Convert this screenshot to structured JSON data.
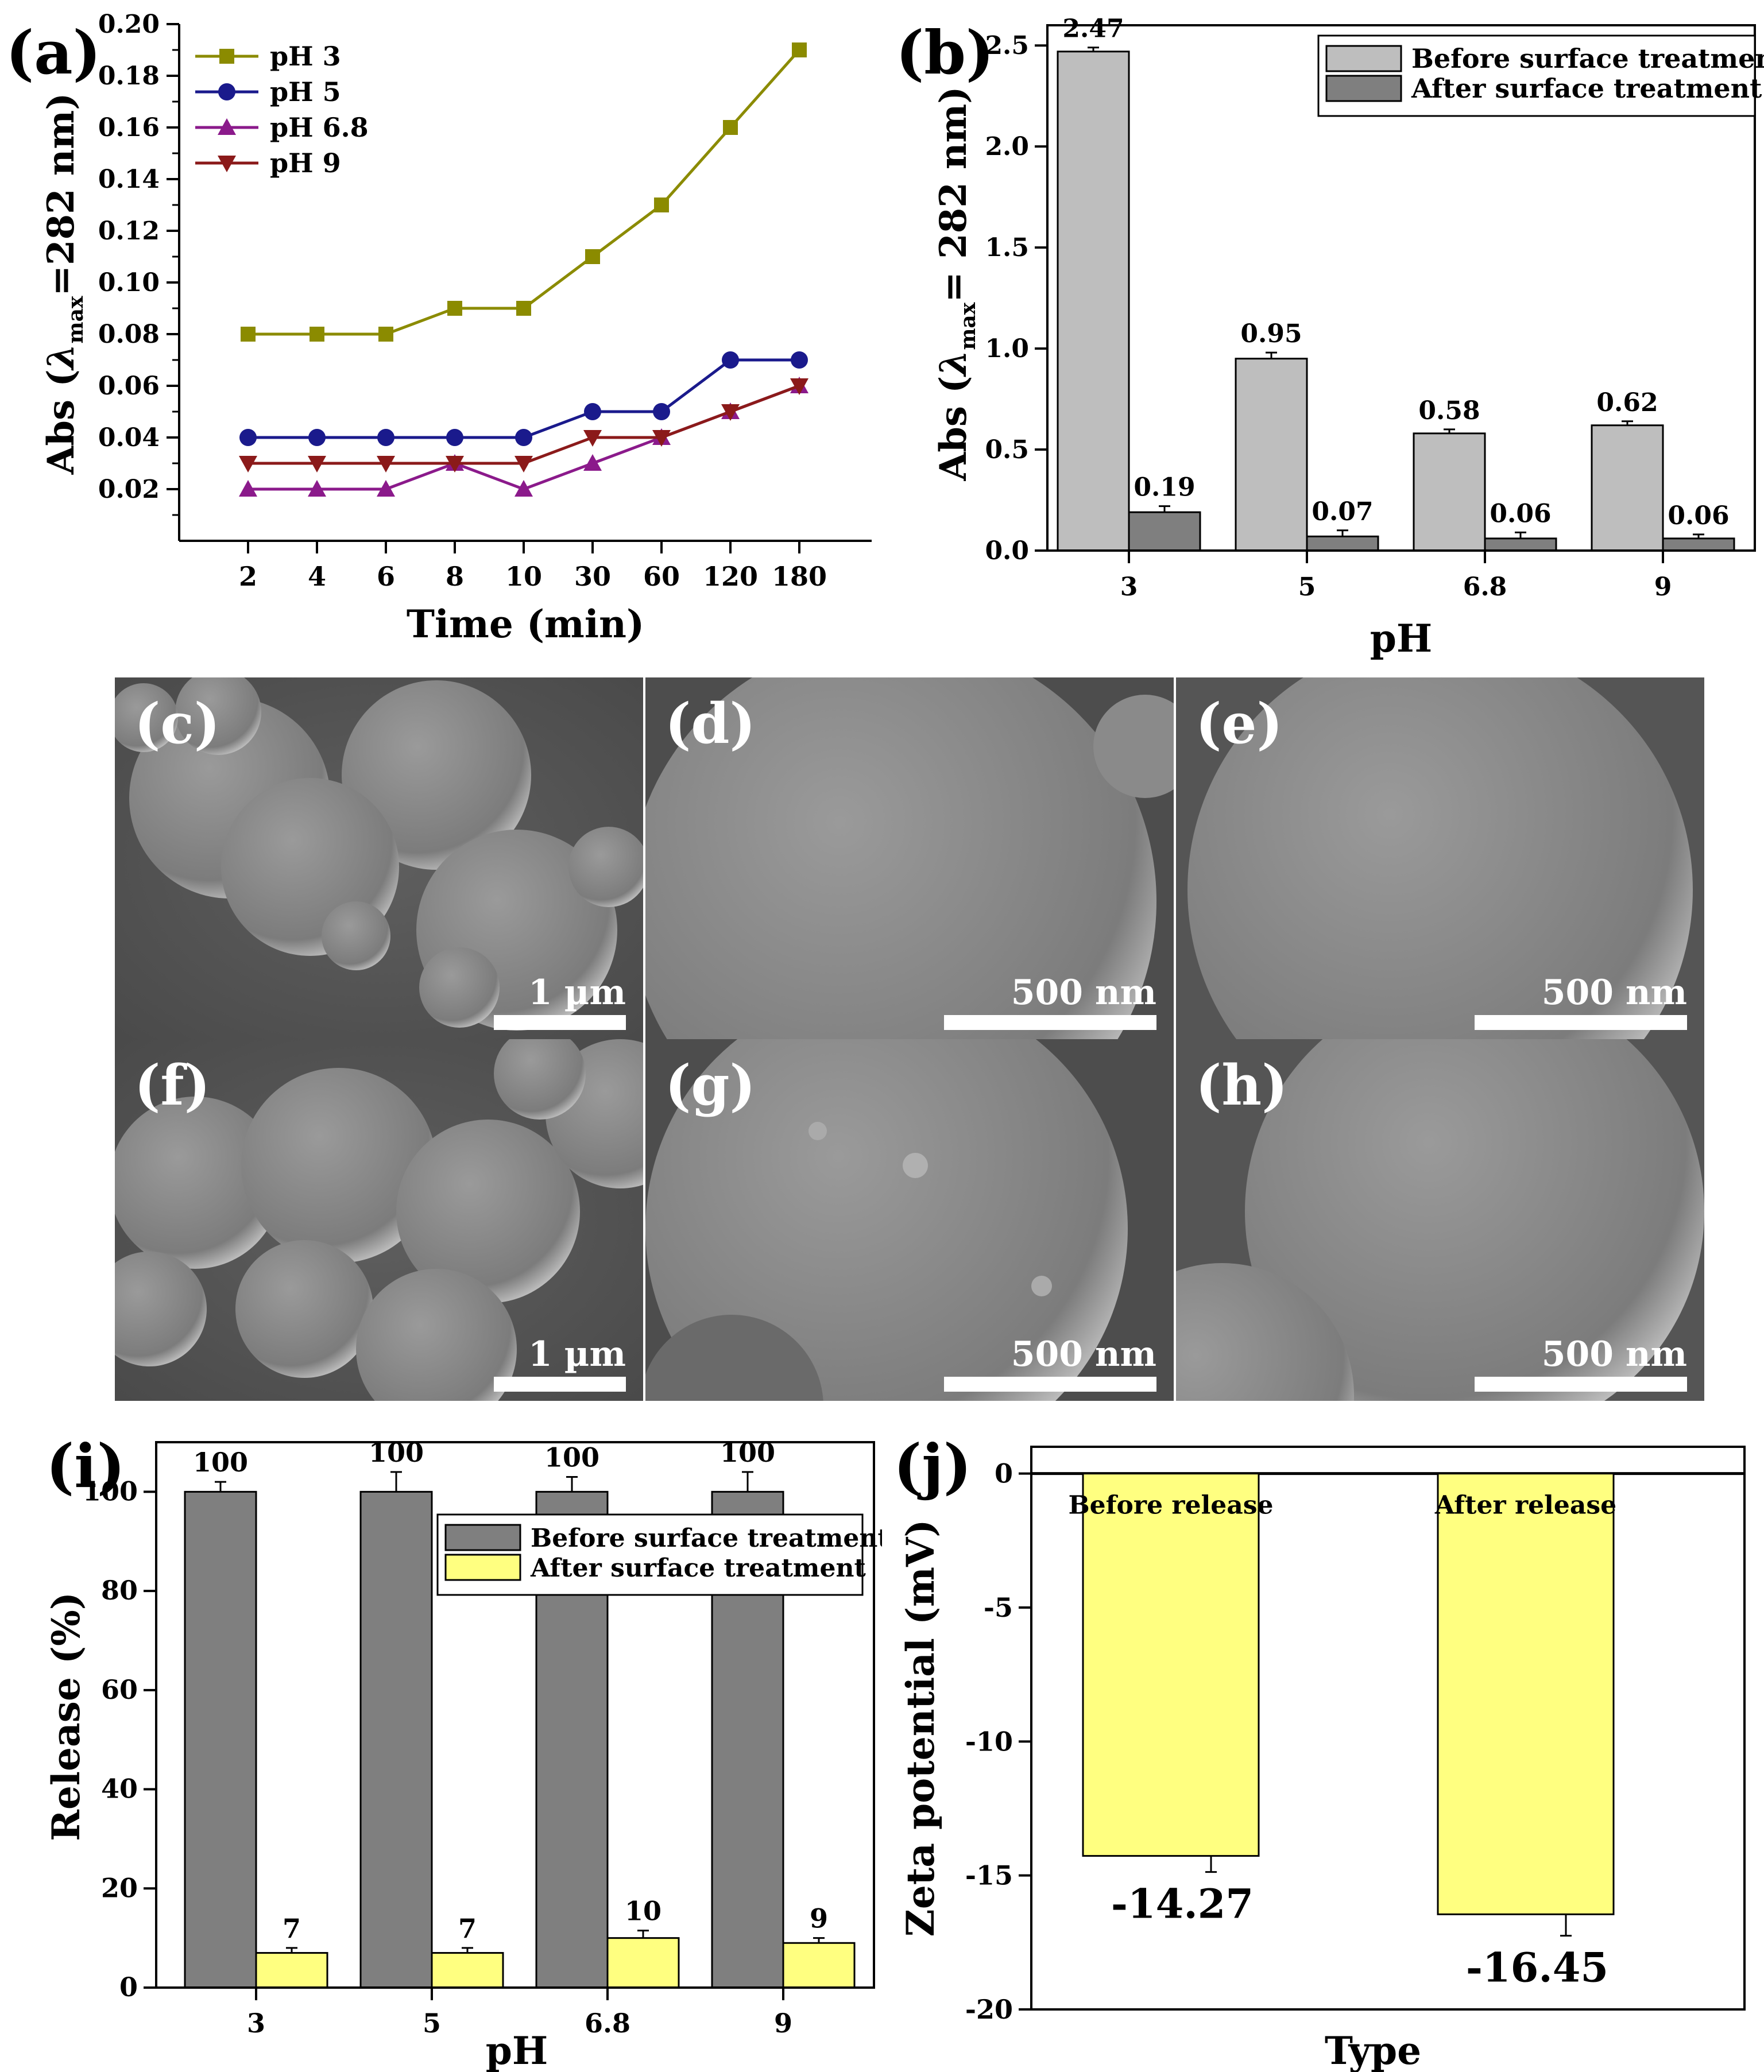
{
  "panel_a": {
    "label": "(a)",
    "chart_data": {
      "type": "line",
      "xlabel": "Time (min)",
      "ylabel": "Abs (λ_max=282 nm)",
      "categories": [
        "2",
        "4",
        "6",
        "8",
        "10",
        "30",
        "60",
        "120",
        "180"
      ],
      "ylim": [
        0,
        0.2
      ],
      "yticks": [
        "0.02",
        "0.04",
        "0.06",
        "0.08",
        "0.10",
        "0.12",
        "0.14",
        "0.16",
        "0.18",
        "0.20"
      ],
      "series": [
        {
          "name": "pH 3",
          "color": "#8b8b00",
          "marker": "square",
          "values": [
            0.08,
            0.08,
            0.08,
            0.09,
            0.09,
            0.11,
            0.13,
            0.16,
            0.19
          ]
        },
        {
          "name": "pH 5",
          "color": "#1a1a8c",
          "marker": "circle",
          "values": [
            0.04,
            0.04,
            0.04,
            0.04,
            0.04,
            0.05,
            0.05,
            0.07,
            0.07
          ]
        },
        {
          "name": "pH 6.8",
          "color": "#8b1a8b",
          "marker": "triangle-up",
          "values": [
            0.02,
            0.02,
            0.02,
            0.03,
            0.02,
            0.03,
            0.04,
            0.05,
            0.06
          ]
        },
        {
          "name": "pH 9",
          "color": "#8b1a1a",
          "marker": "triangle-down",
          "values": [
            0.03,
            0.03,
            0.03,
            0.03,
            0.03,
            0.04,
            0.04,
            0.05,
            0.06
          ]
        }
      ]
    }
  },
  "panel_b": {
    "label": "(b)",
    "chart_data": {
      "type": "bar",
      "xlabel": "pH",
      "ylabel": "Abs (λ_max = 282 nm)",
      "categories": [
        "3",
        "5",
        "6.8",
        "9"
      ],
      "ylim": [
        0,
        2.6
      ],
      "yticks": [
        "0.0",
        "0.5",
        "1.0",
        "1.5",
        "2.0",
        "2.5"
      ],
      "series": [
        {
          "name": "Before surface treatment",
          "color": "#bebebe",
          "values": [
            2.47,
            0.95,
            0.58,
            0.62
          ],
          "labels": [
            "2.47",
            "0.95",
            "0.58",
            "0.62"
          ]
        },
        {
          "name": "After surface treatment",
          "color": "#7f7f7f",
          "values": [
            0.19,
            0.07,
            0.06,
            0.06
          ],
          "labels": [
            "0.19",
            "0.07",
            "0.06",
            "0.06"
          ]
        }
      ]
    }
  },
  "sem_images": [
    {
      "label": "(c)",
      "scale": "1 µm"
    },
    {
      "label": "(d)",
      "scale": "500 nm"
    },
    {
      "label": "(e)",
      "scale": "500 nm"
    },
    {
      "label": "(f)",
      "scale": "1 µm"
    },
    {
      "label": "(g)",
      "scale": "500 nm"
    },
    {
      "label": "(h)",
      "scale": "500 nm"
    }
  ],
  "panel_i": {
    "label": "(i)",
    "chart_data": {
      "type": "bar",
      "xlabel": "pH",
      "ylabel": "Release (%)",
      "categories": [
        "3",
        "5",
        "6.8",
        "9"
      ],
      "ylim": [
        0,
        110
      ],
      "yticks": [
        "0",
        "20",
        "40",
        "60",
        "80",
        "100"
      ],
      "series": [
        {
          "name": "Before surface treatment",
          "color": "#7f7f7f",
          "values": [
            100,
            100,
            100,
            100
          ],
          "labels": [
            "100",
            "100",
            "100",
            "100"
          ]
        },
        {
          "name": "After surface treatment",
          "color": "#ffff80",
          "values": [
            7,
            7,
            10,
            9
          ],
          "labels": [
            "7",
            "7",
            "10",
            "9"
          ]
        }
      ]
    }
  },
  "panel_j": {
    "label": "(j)",
    "chart_data": {
      "type": "bar",
      "xlabel": "Type",
      "ylabel": "Zeta potential (mV)",
      "categories": [
        "Before release",
        "After release"
      ],
      "ylim": [
        -20,
        1
      ],
      "yticks": [
        "0",
        "-5",
        "-10",
        "-15",
        "-20"
      ],
      "series": [
        {
          "name": "Zeta potential",
          "color": "#ffff80",
          "values": [
            -14.27,
            -16.45
          ],
          "labels": [
            "-14.27",
            "-16.45"
          ]
        }
      ]
    }
  }
}
